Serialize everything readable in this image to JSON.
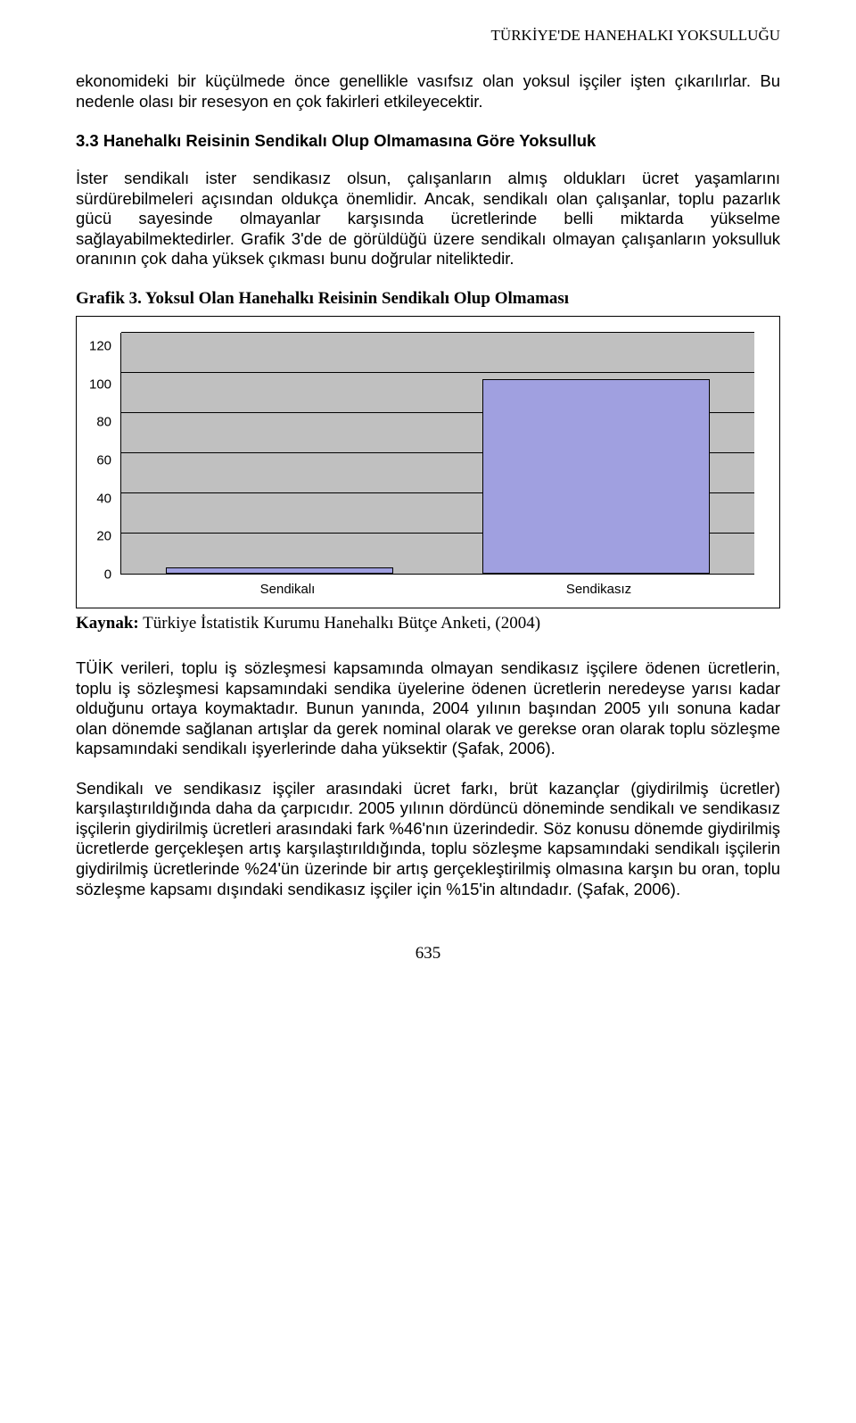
{
  "header": {
    "running_title": "TÜRKİYE'DE HANEHALKI YOKSULLUĞU"
  },
  "paragraphs": {
    "p1": "ekonomideki bir küçülmede önce genellikle vasıfsız olan yoksul işçiler işten çıkarılırlar. Bu nedenle olası bir resesyon en çok fakirleri etkileyecektir.",
    "section_heading": "3.3 Hanehalkı Reisinin Sendikalı Olup Olmamasına Göre Yoksulluk",
    "p2": "İster sendikalı ister sendikasız olsun, çalışanların almış oldukları ücret yaşamlarını sürdürebilmeleri açısından oldukça önemlidir. Ancak, sendikalı olan çalışanlar, toplu pazarlık gücü sayesinde olmayanlar karşısında ücretlerinde belli miktarda yükselme sağlayabilmektedirler. Grafik 3'de de görüldüğü üzere sendikalı olmayan çalışanların yoksulluk oranının çok daha yüksek çıkması bunu doğrular niteliktedir.",
    "p3": "TÜİK verileri, toplu iş sözleşmesi kapsamında olmayan sendikasız işçilere ödenen ücretlerin, toplu iş sözleşmesi kapsamındaki sendika üyelerine ödenen ücretlerin neredeyse yarısı kadar olduğunu ortaya koymaktadır. Bunun yanında, 2004 yılının başından 2005 yılı sonuna kadar olan dönemde sağlanan artışlar da gerek nominal olarak ve gerekse oran olarak toplu sözleşme kapsamındaki sendikalı işyerlerinde daha yüksektir (Şafak, 2006).",
    "p4": "Sendikalı ve sendikasız işçiler arasındaki ücret farkı, brüt kazançlar (giydirilmiş ücretler) karşılaştırıldığında daha da çarpıcıdır. 2005 yılının dördüncü döneminde sendikalı ve sendikasız işçilerin giydirilmiş ücretleri arasındaki fark %46'nın üzerindedir. Söz konusu dönemde giydirilmiş ücretlerde gerçekleşen artış karşılaştırıldığında, toplu sözleşme kapsamındaki sendikalı işçilerin giydirilmiş ücretlerinde %24'ün üzerinde bir artış gerçekleştirilmiş olmasına karşın bu oran, toplu sözleşme kapsamı dışındaki sendikasız işçiler için %15'in altındadır. (Şafak, 2006)."
  },
  "chart": {
    "title": "Grafik 3. Yoksul Olan Hanehalkı Reisinin Sendikalı Olup Olmaması",
    "type": "bar",
    "categories": [
      "Sendikalı",
      "Sendikasız"
    ],
    "values": [
      3,
      97
    ],
    "bar_color": "#a0a0e0",
    "bar_border_color": "#000000",
    "background_color": "#c0c0c0",
    "grid_color": "#000000",
    "ylim": [
      0,
      120
    ],
    "ytick_step": 20,
    "yticks": [
      "120",
      "100",
      "80",
      "60",
      "40",
      "20",
      "0"
    ],
    "bar_width_pct": 36,
    "axis_label_fontsize": 15,
    "title_fontsize": 19
  },
  "source": {
    "label": "Kaynak:",
    "text": " Türkiye İstatistik Kurumu Hanehalkı Bütçe Anketi, (2004)"
  },
  "page_number": "635"
}
